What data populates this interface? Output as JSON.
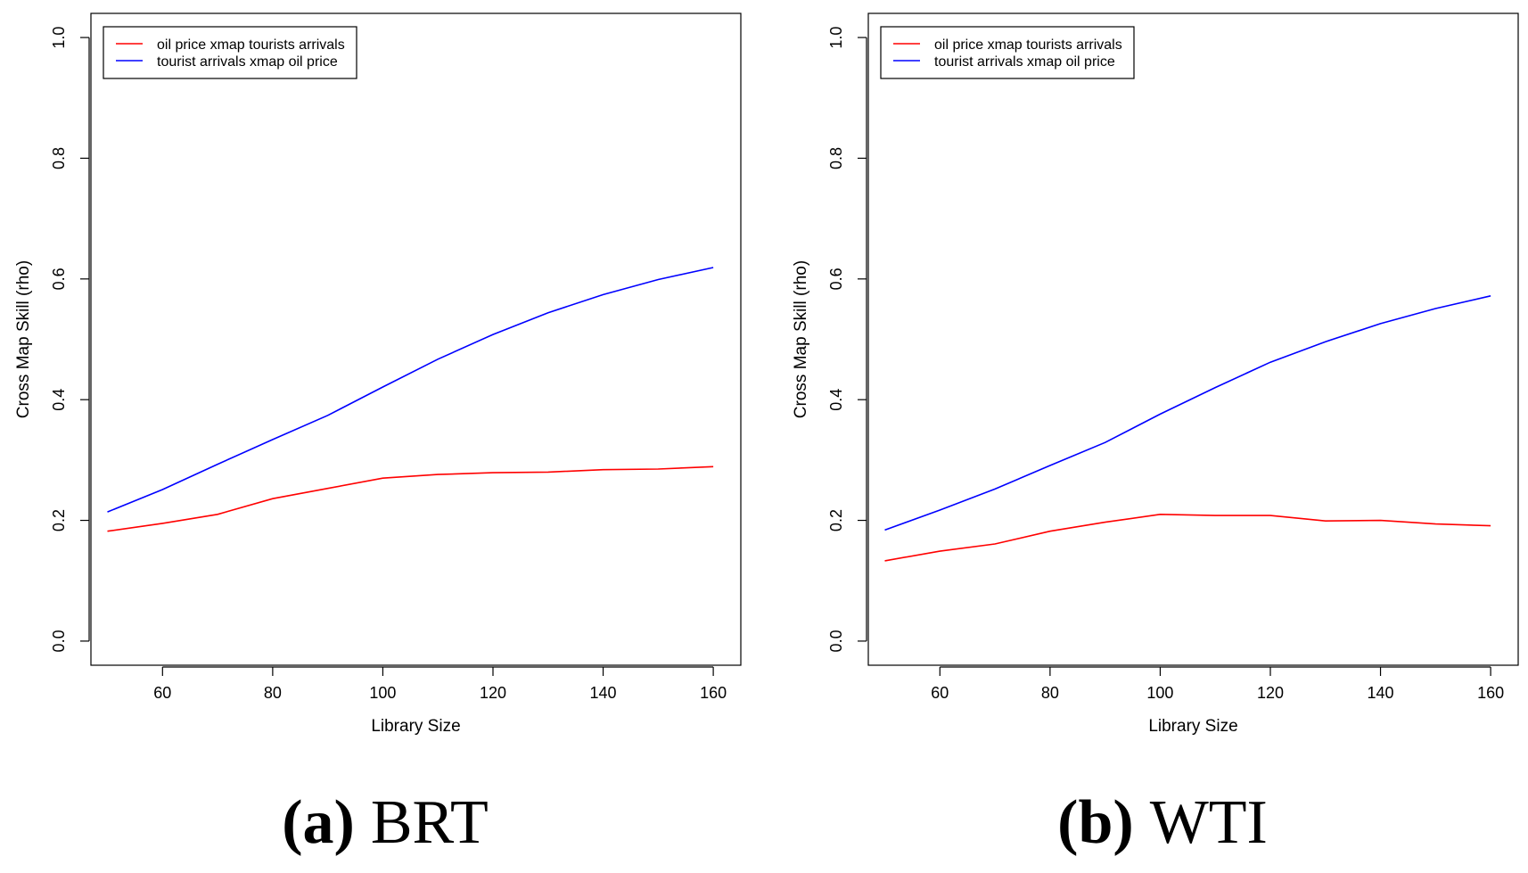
{
  "chart_data": [
    {
      "type": "line",
      "panel_label": "(a)",
      "caption": "BRT",
      "title": "",
      "xlabel": "Library Size",
      "ylabel": "Cross Map Skill (rho)",
      "xlim": [
        47,
        165
      ],
      "ylim": [
        -0.04,
        1.04
      ],
      "xticks": [
        60,
        80,
        100,
        120,
        140,
        160
      ],
      "yticks": [
        0.0,
        0.2,
        0.4,
        0.6,
        0.8,
        1.0
      ],
      "ytick_labels": [
        "0.0",
        "0.2",
        "0.4",
        "0.6",
        "0.8",
        "1.0"
      ],
      "grid": false,
      "legend_position": "top-left",
      "x": [
        50,
        60,
        70,
        80,
        90,
        100,
        110,
        120,
        130,
        140,
        150,
        160
      ],
      "series": [
        {
          "name": "oil price xmap tourists arrivals",
          "color": "#ff0000",
          "values": [
            0.182,
            0.195,
            0.21,
            0.236,
            0.253,
            0.27,
            0.276,
            0.279,
            0.28,
            0.284,
            0.285,
            0.289
          ]
        },
        {
          "name": "tourist arrivals xmap oil price",
          "color": "#0000ff",
          "values": [
            0.214,
            0.251,
            0.293,
            0.334,
            0.374,
            0.421,
            0.467,
            0.508,
            0.544,
            0.574,
            0.599,
            0.619
          ]
        }
      ]
    },
    {
      "type": "line",
      "panel_label": "(b)",
      "caption": "WTI",
      "title": "",
      "xlabel": "Library Size",
      "ylabel": "Cross Map Skill (rho)",
      "xlim": [
        47,
        165
      ],
      "ylim": [
        -0.04,
        1.04
      ],
      "xticks": [
        60,
        80,
        100,
        120,
        140,
        160
      ],
      "yticks": [
        0.0,
        0.2,
        0.4,
        0.6,
        0.8,
        1.0
      ],
      "ytick_labels": [
        "0.0",
        "0.2",
        "0.4",
        "0.6",
        "0.8",
        "1.0"
      ],
      "grid": false,
      "legend_position": "top-left",
      "x": [
        50,
        60,
        70,
        80,
        90,
        100,
        110,
        120,
        130,
        140,
        150,
        160
      ],
      "series": [
        {
          "name": "oil price xmap tourists arrivals",
          "color": "#ff0000",
          "values": [
            0.133,
            0.149,
            0.161,
            0.182,
            0.197,
            0.21,
            0.208,
            0.208,
            0.199,
            0.2,
            0.194,
            0.191
          ]
        },
        {
          "name": "tourist arrivals xmap oil price",
          "color": "#0000ff",
          "values": [
            0.184,
            0.217,
            0.252,
            0.291,
            0.329,
            0.376,
            0.42,
            0.462,
            0.496,
            0.526,
            0.551,
            0.572
          ]
        }
      ]
    }
  ]
}
